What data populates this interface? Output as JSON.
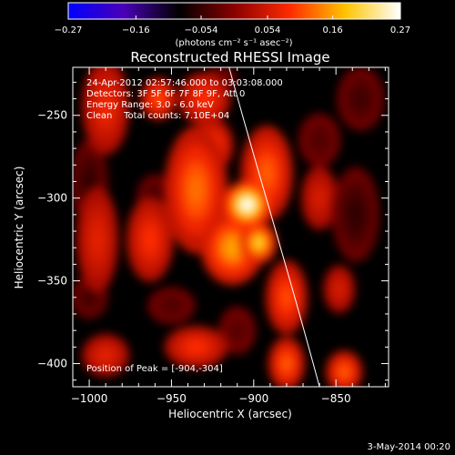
{
  "chart_data": {
    "type": "heatmap",
    "title": "Reconstructed RHESSI Image",
    "xlabel": "Heliocentric X (arcsec)",
    "ylabel": "Heliocentric Y (arcsec)",
    "xlim": [
      -1010,
      -818
    ],
    "ylim": [
      -414,
      -221
    ],
    "x_ticks": [
      -1000,
      -950,
      -900,
      -850
    ],
    "y_ticks": [
      -250,
      -300,
      -350,
      -400
    ],
    "x_tick_labels": [
      "−1000",
      "−950",
      "−900",
      "−850"
    ],
    "y_tick_labels": [
      "−250",
      "−300",
      "−350",
      "−400"
    ],
    "colorbar": {
      "range": [
        -0.27,
        0.27
      ],
      "ticks": [
        -0.27,
        -0.16,
        -0.054,
        0.054,
        0.16,
        0.27
      ],
      "tick_labels": [
        "−0.27",
        "−0.16",
        "−0.054",
        "0.054",
        "0.16",
        "0.27"
      ],
      "unit_label": "(photons cm⁻² s⁻¹ asec⁻²)",
      "colors": [
        "#0000ff",
        "#4a00b8",
        "#000000",
        "#8a0000",
        "#ff2a00",
        "#ffc400",
        "#ffffff"
      ]
    },
    "info_lines": [
      "24-Apr-2012 02:57:46.000 to 03:03:08.000",
      "Detectors: 3F 5F 6F 7F 8F 9F, Att 0",
      "Energy Range: 3.0 - 6.0 keV",
      "Clean    Total counts: 7.10E+04"
    ],
    "peak_label": "Position of Peak = [-904,-304]",
    "peak": [
      -904,
      -304
    ],
    "limb_curve": [
      [
        -915,
        -221
      ],
      [
        -893,
        -300
      ],
      [
        -880,
        -340
      ],
      [
        -860,
        -414
      ]
    ],
    "sources": [
      {
        "x": -904,
        "y": -304,
        "value": 0.27,
        "sx": 9,
        "sy": 9
      },
      {
        "x": -897,
        "y": -327,
        "value": 0.2,
        "sx": 7,
        "sy": 8
      },
      {
        "x": -913,
        "y": -330,
        "value": 0.16,
        "sx": 12,
        "sy": 14
      },
      {
        "x": -935,
        "y": -295,
        "value": 0.13,
        "sx": 12,
        "sy": 24
      },
      {
        "x": -892,
        "y": -285,
        "value": 0.12,
        "sx": 10,
        "sy": 18
      },
      {
        "x": -925,
        "y": -268,
        "value": 0.1,
        "sx": 8,
        "sy": 10
      },
      {
        "x": -958,
        "y": -240,
        "value": 0.11,
        "sx": 7,
        "sy": 8
      },
      {
        "x": -930,
        "y": -240,
        "value": 0.09,
        "sx": 10,
        "sy": 10
      },
      {
        "x": -963,
        "y": -325,
        "value": 0.09,
        "sx": 9,
        "sy": 16
      },
      {
        "x": -990,
        "y": -245,
        "value": 0.08,
        "sx": 9,
        "sy": 18
      },
      {
        "x": -995,
        "y": -325,
        "value": 0.07,
        "sx": 8,
        "sy": 20
      },
      {
        "x": -880,
        "y": -360,
        "value": 0.11,
        "sx": 8,
        "sy": 14
      },
      {
        "x": -880,
        "y": -400,
        "value": 0.12,
        "sx": 7,
        "sy": 10
      },
      {
        "x": -845,
        "y": -405,
        "value": 0.12,
        "sx": 7,
        "sy": 8
      },
      {
        "x": -935,
        "y": -390,
        "value": 0.09,
        "sx": 12,
        "sy": 8
      },
      {
        "x": -990,
        "y": -395,
        "value": 0.07,
        "sx": 9,
        "sy": 8
      },
      {
        "x": -860,
        "y": -300,
        "value": 0.06,
        "sx": 7,
        "sy": 12
      },
      {
        "x": -848,
        "y": -355,
        "value": 0.06,
        "sx": 6,
        "sy": 9
      },
      {
        "x": -960,
        "y": -300,
        "value": -0.05,
        "sx": 7,
        "sy": 9
      },
      {
        "x": -1000,
        "y": -290,
        "value": -0.06,
        "sx": 7,
        "sy": 16
      },
      {
        "x": -1000,
        "y": -360,
        "value": -0.05,
        "sx": 7,
        "sy": 8
      },
      {
        "x": -838,
        "y": -310,
        "value": -0.06,
        "sx": 9,
        "sy": 18
      },
      {
        "x": -835,
        "y": -240,
        "value": -0.05,
        "sx": 9,
        "sy": 12
      },
      {
        "x": -860,
        "y": -265,
        "value": -0.04,
        "sx": 8,
        "sy": 10
      },
      {
        "x": -950,
        "y": -365,
        "value": -0.04,
        "sx": 9,
        "sy": 7
      },
      {
        "x": -910,
        "y": -380,
        "value": -0.035,
        "sx": 7,
        "sy": 9
      },
      {
        "x": -920,
        "y": -228,
        "value": -0.04,
        "sx": 6,
        "sy": 5
      }
    ]
  },
  "footer": {
    "date": "3-May-2014 00:20"
  }
}
